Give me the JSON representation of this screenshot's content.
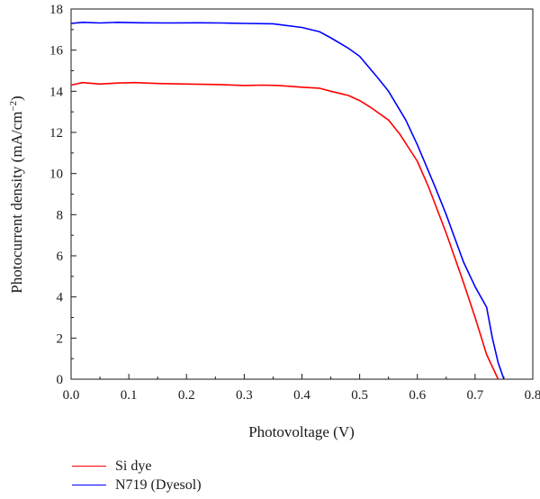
{
  "chart_data": {
    "type": "line",
    "title": "",
    "xlabel": "Photovoltage (V)",
    "ylabel": "Photocurrent density (mA/cm−2)",
    "ylabel_parts": {
      "main": "Photocurrent density (mA/cm",
      "sup": "−2",
      "end": ")"
    },
    "xlim": [
      0.0,
      0.8
    ],
    "ylim": [
      0,
      18
    ],
    "x_ticks": [
      "0.0",
      "0.1",
      "0.2",
      "0.3",
      "0.4",
      "0.5",
      "0.6",
      "0.7",
      "0.8"
    ],
    "y_ticks": [
      "0",
      "2",
      "4",
      "6",
      "8",
      "10",
      "12",
      "14",
      "16",
      "18"
    ],
    "grid": false,
    "legend_placement": "bottom-left, below plot",
    "series": [
      {
        "name": "Si dye",
        "color": "#ff0000",
        "x": [
          0.0,
          0.02,
          0.05,
          0.08,
          0.11,
          0.15,
          0.2,
          0.25,
          0.3,
          0.33,
          0.36,
          0.4,
          0.43,
          0.45,
          0.48,
          0.5,
          0.52,
          0.55,
          0.57,
          0.6,
          0.62,
          0.65,
          0.68,
          0.7,
          0.72,
          0.74
        ],
        "y": [
          14.3,
          14.42,
          14.35,
          14.4,
          14.42,
          14.38,
          14.35,
          14.33,
          14.28,
          14.3,
          14.28,
          14.2,
          14.15,
          14.0,
          13.8,
          13.55,
          13.2,
          12.6,
          11.9,
          10.6,
          9.3,
          7.1,
          4.7,
          3.0,
          1.2,
          0.0
        ]
      },
      {
        "name": "N719 (Dyesol)",
        "color": "#0000ff",
        "x": [
          0.0,
          0.02,
          0.05,
          0.08,
          0.12,
          0.17,
          0.22,
          0.26,
          0.3,
          0.35,
          0.4,
          0.43,
          0.45,
          0.48,
          0.5,
          0.53,
          0.55,
          0.58,
          0.6,
          0.63,
          0.65,
          0.68,
          0.7,
          0.72,
          0.73,
          0.74,
          0.75
        ],
        "y": [
          17.3,
          17.35,
          17.32,
          17.35,
          17.33,
          17.32,
          17.33,
          17.32,
          17.3,
          17.28,
          17.1,
          16.9,
          16.6,
          16.1,
          15.7,
          14.7,
          14.0,
          12.6,
          11.4,
          9.4,
          8.0,
          5.7,
          4.5,
          3.5,
          2.0,
          0.8,
          0.0
        ]
      }
    ]
  }
}
